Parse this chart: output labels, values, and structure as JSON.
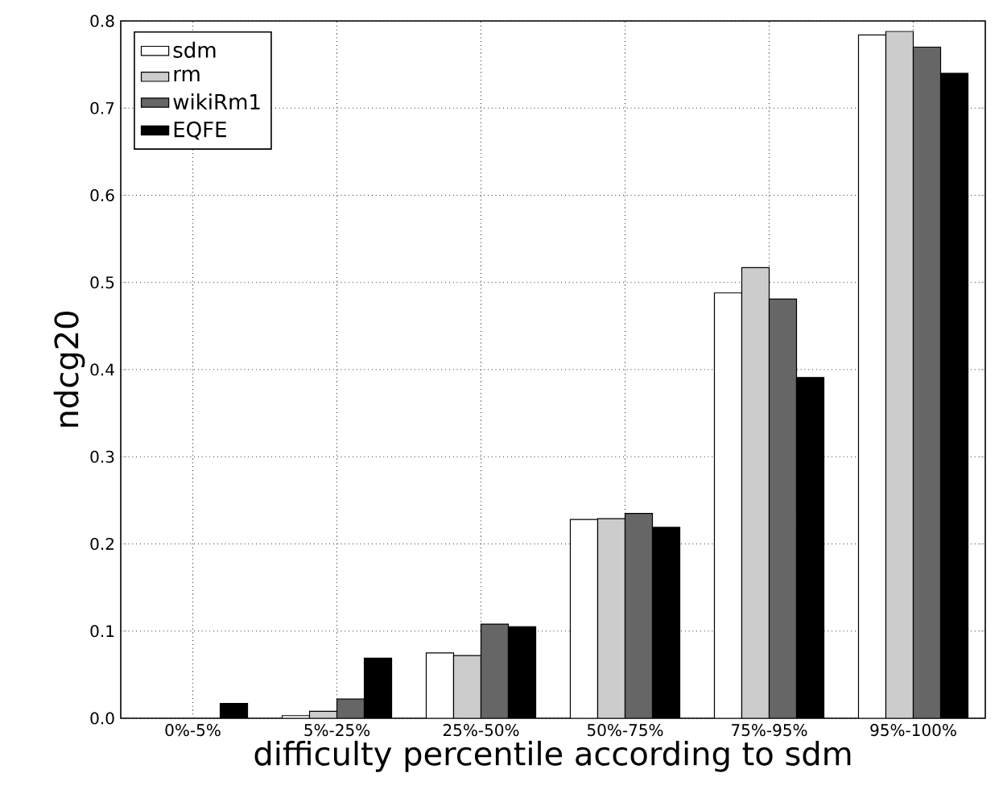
{
  "chart_data": {
    "type": "bar",
    "xlabel": "difficulty percentile according to sdm",
    "ylabel": "ndcg20",
    "categories": [
      "0%-5%",
      "5%-25%",
      "25%-50%",
      "50%-75%",
      "75%-95%",
      "95%-100%"
    ],
    "series": [
      {
        "name": "sdm",
        "color": "#ffffff",
        "values": [
          null,
          0.003,
          0.075,
          0.228,
          0.488,
          0.784
        ]
      },
      {
        "name": "rm",
        "color": "#cccccc",
        "values": [
          null,
          0.008,
          0.072,
          0.229,
          0.517,
          0.788
        ]
      },
      {
        "name": "wikiRm1",
        "color": "#666666",
        "values": [
          null,
          0.022,
          0.108,
          0.235,
          0.481,
          0.77
        ]
      },
      {
        "name": "EQFE",
        "color": "#000000",
        "values": [
          0.017,
          0.069,
          0.105,
          0.219,
          0.391,
          0.74
        ]
      }
    ],
    "ylim": [
      0,
      0.8
    ],
    "yticks": [
      {
        "value": 0,
        "label": "0.0"
      },
      0.1,
      0.2,
      0.3,
      0.4,
      0.5,
      0.6,
      0.7,
      0.8
    ],
    "grid": true,
    "legend": "top left"
  }
}
